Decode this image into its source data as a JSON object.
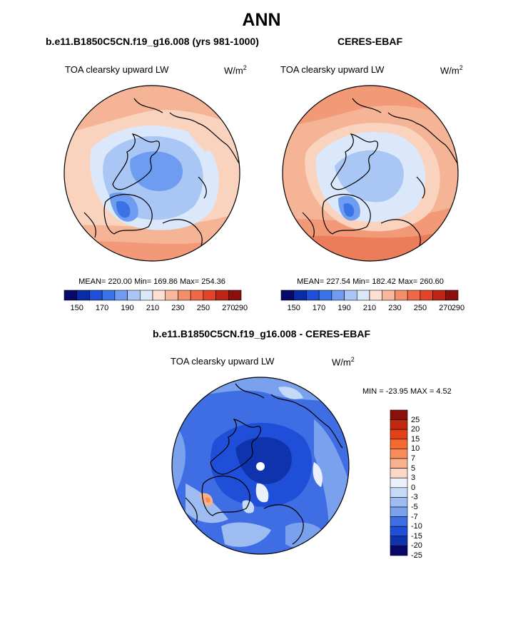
{
  "page_title": "ANN",
  "panels": [
    {
      "title": "b.e11.B1850C5CN.f19_g16.008 (yrs 981-1000)",
      "variable": "TOA clearsky upward LW",
      "units_base": "W/m",
      "units_exp": "2",
      "stats": "MEAN= 220.00  Min= 169.86  Max= 254.36",
      "colorbar_labels": [
        "150",
        "170",
        "190",
        "210",
        "230",
        "250",
        "270",
        "290"
      ]
    },
    {
      "title": "CERES-EBAF",
      "variable": "TOA clearsky upward LW",
      "units_base": "W/m",
      "units_exp": "2",
      "stats": "MEAN= 227.54  Min= 182.42  Max= 260.60",
      "colorbar_labels": [
        "150",
        "170",
        "190",
        "210",
        "230",
        "250",
        "270",
        "290"
      ]
    },
    {
      "title": "b.e11.B1850C5CN.f19_g16.008 - CERES-EBAF",
      "variable": "TOA clearsky upward LW",
      "units_base": "W/m",
      "units_exp": "2",
      "stats": "MIN = -23.95 MAX =   4.52",
      "colorbar_labels": [
        "25",
        "20",
        "15",
        "10",
        "7",
        "5",
        "3",
        "0",
        "-3",
        "-5",
        "-7",
        "-10",
        "-15",
        "-20",
        "-25"
      ]
    }
  ],
  "colors": {
    "abs_scale": [
      "#08086b",
      "#0b2aa6",
      "#1f4fd8",
      "#3b73e6",
      "#6d9cf0",
      "#a9c6f5",
      "#dbe8fb",
      "#fde0d2",
      "#f9b79b",
      "#f38f6c",
      "#ec6a45",
      "#e0442a",
      "#bd2617",
      "#8b0f0a"
    ],
    "diff_scale": [
      "#8b0f0a",
      "#c1280f",
      "#e34216",
      "#f3692f",
      "#f88d5a",
      "#f8b08d",
      "#fbd8c6",
      "#eaf1fc",
      "#c5d9f8",
      "#9dbdf2",
      "#7aa1ee",
      "#3f6de3",
      "#1f4fd8",
      "#0f32ad",
      "#08086b"
    ]
  },
  "chart_data": [
    {
      "type": "heatmap",
      "projection": "north polar stereographic",
      "title": "b.e11.B1850C5CN.f19_g16.008 (yrs 981-1000)",
      "variable": "TOA clearsky upward LW",
      "units": "W/m2",
      "mean": 220.0,
      "min": 169.86,
      "max": 254.36,
      "contour_levels": [
        150,
        160,
        170,
        180,
        190,
        200,
        210,
        220,
        230,
        240,
        250,
        260,
        270,
        280,
        290
      ]
    },
    {
      "type": "heatmap",
      "projection": "north polar stereographic",
      "title": "CERES-EBAF",
      "variable": "TOA clearsky upward LW",
      "units": "W/m2",
      "mean": 227.54,
      "min": 182.42,
      "max": 260.6,
      "contour_levels": [
        150,
        160,
        170,
        180,
        190,
        200,
        210,
        220,
        230,
        240,
        250,
        260,
        270,
        280,
        290
      ]
    },
    {
      "type": "heatmap",
      "projection": "north polar stereographic",
      "title": "b.e11.B1850C5CN.f19_g16.008 - CERES-EBAF",
      "variable": "TOA clearsky upward LW",
      "units": "W/m2",
      "min": -23.95,
      "max": 4.52,
      "contour_levels": [
        -25,
        -20,
        -15,
        -10,
        -7,
        -5,
        -3,
        0,
        3,
        5,
        7,
        10,
        15,
        20,
        25
      ]
    }
  ]
}
